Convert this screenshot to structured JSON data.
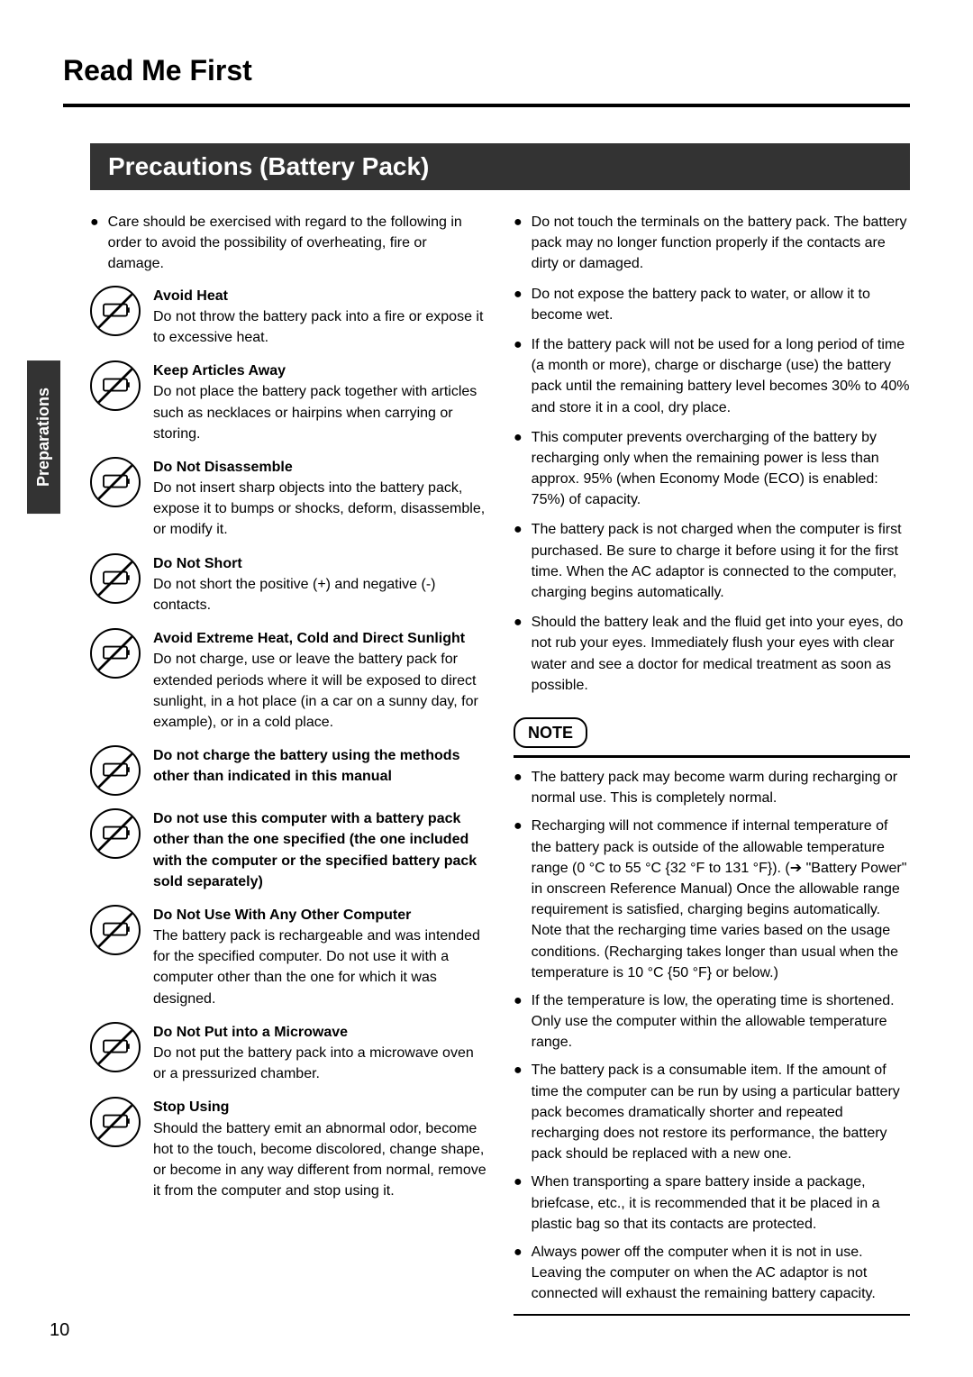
{
  "header": {
    "title": "Read Me First"
  },
  "side_tab": "Preparations",
  "section_banner": "Precautions (Battery Pack)",
  "page_number": "10",
  "left_col": {
    "intro": "Care should be exercised with regard to the following in order to avoid the possibility of overheating, fire or damage.",
    "warnings": [
      {
        "title": "Avoid Heat",
        "body": "Do not throw the battery pack into a fire or expose it to excessive heat."
      },
      {
        "title": "Keep Articles Away",
        "body": "Do not place the battery pack together with articles such as necklaces or hairpins when carrying or storing."
      },
      {
        "title": "Do Not Disassemble",
        "body": "Do not insert sharp objects into the battery pack, expose it to bumps or shocks, deform, disassemble, or modify it."
      },
      {
        "title": "Do Not Short",
        "body": "Do not short the positive (+) and negative (-) contacts."
      },
      {
        "title": "Avoid Extreme Heat, Cold and Direct Sunlight",
        "body": "Do not charge, use or leave the battery pack for extended periods where it will be exposed to direct sunlight, in a hot place (in a car on a sunny day, for example), or in a cold place."
      },
      {
        "title": "Do not charge the battery using the methods other than indicated in this manual",
        "body": ""
      },
      {
        "title": "Do not use this computer with a battery pack other than the one specified (the one included with the computer or the specified battery pack sold separately)",
        "body": ""
      },
      {
        "title": "Do Not Use With Any Other Computer",
        "body": "The battery pack is rechargeable and was intended for the specified computer. Do not use it with a computer other than the one for which it was designed."
      },
      {
        "title": "Do Not Put into a Microwave",
        "body": "Do not put the battery pack into a microwave oven or a pressurized chamber."
      },
      {
        "title": "Stop Using",
        "body": "Should the battery emit an abnormal odor, become hot to the touch, become discolored, change shape, or become in any way different from normal, remove it from the computer and stop using it."
      }
    ]
  },
  "right_col": {
    "bullets": [
      "Do not touch the terminals on the battery pack.  The battery pack may no longer function properly if the contacts are dirty or damaged.",
      "Do not expose the battery pack to water, or allow it to become wet.",
      "If the battery pack will not be used for a long period of time (a month or more), charge or discharge (use) the battery pack until the remaining battery level becomes 30% to 40% and store it in a cool, dry place.",
      "This computer prevents overcharging of the battery by recharging only when the remaining power is less than approx. 95% (when Economy Mode (ECO) is enabled: 75%) of capacity.",
      "The battery pack is not charged when the computer is first purchased.  Be sure to charge it before using it for the first time.  When the AC adaptor is connected to the computer, charging begins automatically.",
      "Should the battery leak and the fluid get into your eyes, do not rub your eyes.  Immediately flush your eyes with clear water and see a doctor for medical treatment as soon as possible."
    ],
    "note_label": "NOTE",
    "note_bullets": [
      "The battery pack may become warm during recharging or normal use.  This is completely normal.",
      "Recharging will not commence if internal temperature of the battery pack is outside of the allowable temperature range (0 °C to 55 °C {32 °F to 131 °F}). (➔ \"Battery Power\" in onscreen Reference Manual)  Once the allowable range requirement is satisfied, charging begins automatically.  Note that the recharging time varies based on the usage conditions. (Recharging takes longer than usual when the temperature is 10 °C {50 °F} or below.)",
      "If the temperature is low, the operating time is shortened.  Only use the computer within the allowable temperature range.",
      "The battery pack is a consumable item.  If the amount of time the computer can be run by using a particular battery pack becomes dramatically shorter and repeated recharging does not restore its performance, the battery pack should be replaced with a new one.",
      "When transporting a spare battery inside a package, briefcase, etc., it is recommended that it be placed in a plastic bag so that its contacts are protected.",
      "Always power off the computer when it is not in use. Leaving the computer on when the AC adaptor is not connected will exhaust the remaining battery capacity."
    ]
  },
  "colors": {
    "banner_bg": "#333333",
    "text": "#000000",
    "rule": "#000000"
  }
}
